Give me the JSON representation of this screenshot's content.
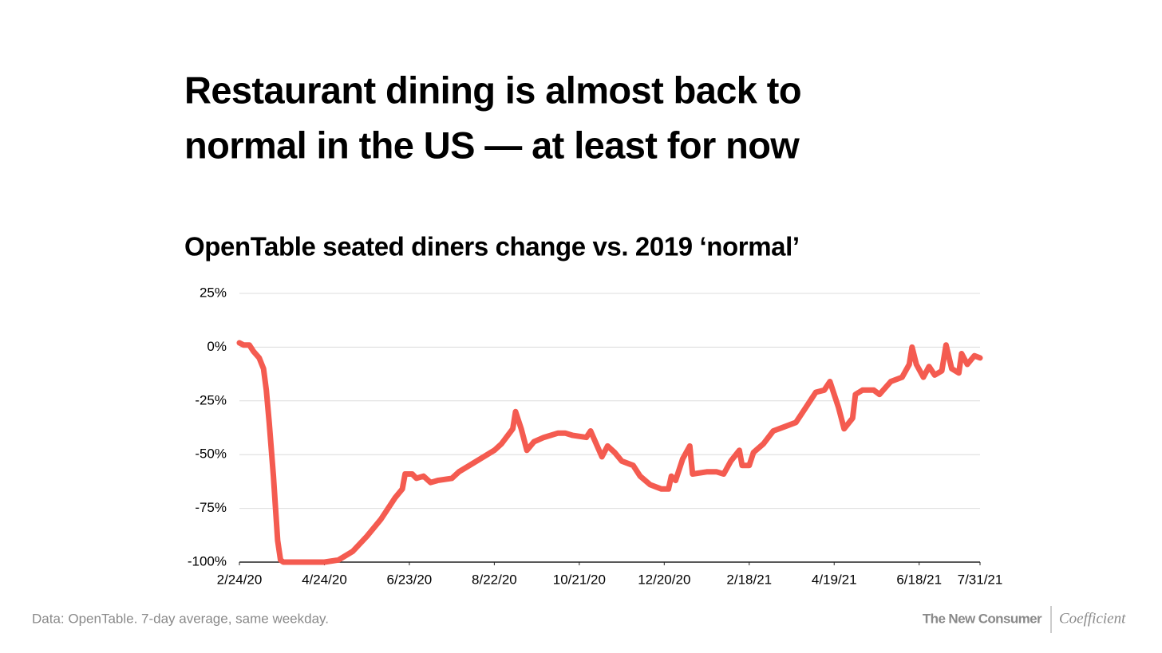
{
  "chart_data": {
    "type": "line",
    "title": [
      "Restaurant dining is almost back to",
      "normal in the US — at least for now"
    ],
    "subtitle": "OpenTable seated diners change vs. 2019 ‘normal’",
    "x": [
      "2020-02-24",
      "2020-02-27",
      "2020-03-02",
      "2020-03-05",
      "2020-03-09",
      "2020-03-12",
      "2020-03-14",
      "2020-03-16",
      "2020-03-19",
      "2020-03-22",
      "2020-03-24",
      "2020-03-26",
      "2020-04-24",
      "2020-05-04",
      "2020-05-14",
      "2020-05-24",
      "2020-06-03",
      "2020-06-13",
      "2020-06-18",
      "2020-06-20",
      "2020-06-25",
      "2020-06-28",
      "2020-07-03",
      "2020-07-08",
      "2020-07-13",
      "2020-07-23",
      "2020-07-28",
      "2020-08-02",
      "2020-08-12",
      "2020-08-22",
      "2020-08-27",
      "2020-09-04",
      "2020-09-06",
      "2020-09-10",
      "2020-09-14",
      "2020-09-19",
      "2020-09-26",
      "2020-10-06",
      "2020-10-11",
      "2020-10-16",
      "2020-10-26",
      "2020-10-29",
      "2020-11-02",
      "2020-11-06",
      "2020-11-10",
      "2020-11-15",
      "2020-11-20",
      "2020-11-28",
      "2020-12-03",
      "2020-12-10",
      "2020-12-18",
      "2020-12-23",
      "2020-12-25",
      "2020-12-28",
      "2021-01-02",
      "2021-01-07",
      "2021-01-09",
      "2021-01-19",
      "2021-01-26",
      "2021-01-31",
      "2021-02-05",
      "2021-02-11",
      "2021-02-13",
      "2021-02-18",
      "2021-02-21",
      "2021-02-28",
      "2021-03-07",
      "2021-03-15",
      "2021-03-23",
      "2021-03-30",
      "2021-04-06",
      "2021-04-12",
      "2021-04-16",
      "2021-04-22",
      "2021-04-26",
      "2021-05-02",
      "2021-05-04",
      "2021-05-09",
      "2021-05-17",
      "2021-05-21",
      "2021-05-29",
      "2021-06-06",
      "2021-06-11",
      "2021-06-13",
      "2021-06-16",
      "2021-06-21",
      "2021-06-25",
      "2021-06-29",
      "2021-07-04",
      "2021-07-07",
      "2021-07-11",
      "2021-07-16",
      "2021-07-18",
      "2021-07-22",
      "2021-07-27",
      "2021-07-31"
    ],
    "series": [
      {
        "color": "#f45b50",
        "values": [
          2,
          1,
          1,
          -2,
          -5,
          -10,
          -20,
          -35,
          -60,
          -90,
          -99,
          -100,
          -100,
          -99,
          -95,
          -88,
          -80,
          -70,
          -66,
          -59,
          -59,
          -61,
          -60,
          -63,
          -62,
          -61,
          -58,
          -56,
          -52,
          -48,
          -45,
          -38,
          -30,
          -38,
          -48,
          -44,
          -42,
          -40,
          -40,
          -41,
          -42,
          -39,
          -45,
          -51,
          -46,
          -49,
          -53,
          -55,
          -60,
          -64,
          -66,
          -66,
          -60,
          -62,
          -52,
          -46,
          -59,
          -58,
          -58,
          -59,
          -53,
          -48,
          -55,
          -55,
          -49,
          -45,
          -39,
          -37,
          -35,
          -28,
          -21,
          -20,
          -16,
          -28,
          -38,
          -33,
          -22,
          -20,
          -20,
          -22,
          -16,
          -14,
          -8,
          0,
          -8,
          -14,
          -9,
          -13,
          -11,
          1,
          -10,
          -12,
          -3,
          -8,
          -4,
          -5
        ]
      }
    ],
    "xlim": [
      "2020-02-24",
      "2021-07-31"
    ],
    "xticks": [
      {
        "value": "2020-02-24",
        "label": "2/24/20"
      },
      {
        "value": "2020-04-24",
        "label": "4/24/20"
      },
      {
        "value": "2020-06-23",
        "label": "6/23/20"
      },
      {
        "value": "2020-08-22",
        "label": "8/22/20"
      },
      {
        "value": "2020-10-21",
        "label": "10/21/20"
      },
      {
        "value": "2020-12-20",
        "label": "12/20/20"
      },
      {
        "value": "2021-02-18",
        "label": "2/18/21"
      },
      {
        "value": "2021-04-19",
        "label": "4/19/21"
      },
      {
        "value": "2021-06-18",
        "label": "6/18/21"
      },
      {
        "value": "2021-07-31",
        "label": "7/31/21"
      }
    ],
    "ylim": [
      -100,
      25
    ],
    "yticks": [
      {
        "value": -100,
        "label": "-100%"
      },
      {
        "value": -75,
        "label": "-75%"
      },
      {
        "value": -50,
        "label": "-50%"
      },
      {
        "value": -25,
        "label": "-25%"
      },
      {
        "value": 0,
        "label": "0%"
      },
      {
        "value": 25,
        "label": "25%"
      }
    ],
    "grid": true
  },
  "footer": {
    "source": "Data: OpenTable. 7-day average, same weekday.",
    "brand": "The New Consumer",
    "partner": "Coefficient"
  }
}
